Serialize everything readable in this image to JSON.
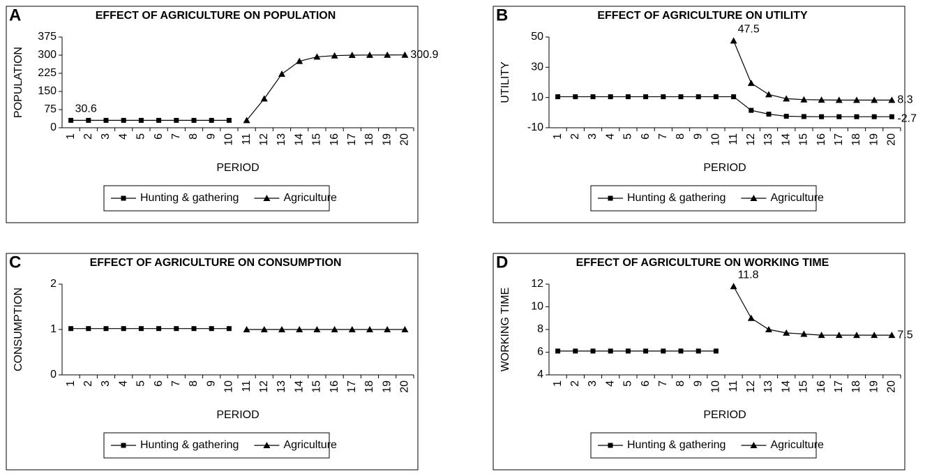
{
  "chart_data": [
    {
      "type": "line",
      "panel": "A",
      "title": "EFFECT OF AGRICULTURE ON POPULATION",
      "x_label": "PERIOD",
      "y_label": "POPULATION",
      "categories": [
        "1",
        "2",
        "3",
        "4",
        "5",
        "6",
        "7",
        "8",
        "9",
        "10",
        "11",
        "12",
        "13",
        "14",
        "15",
        "16",
        "17",
        "18",
        "19",
        "20"
      ],
      "ylim": [
        0,
        375
      ],
      "yticks": [
        0,
        75,
        150,
        225,
        300,
        375
      ],
      "legend": "bottom",
      "series": [
        {
          "name": "Hunting & gathering",
          "color": "#000000",
          "marker": "square",
          "labeled": [
            0
          ],
          "values": [
            30.6,
            30.6,
            30.6,
            30.6,
            30.6,
            30.6,
            30.6,
            30.6,
            30.6,
            30.6,
            null,
            null,
            null,
            null,
            null,
            null,
            null,
            null,
            null,
            null
          ]
        },
        {
          "name": "Agriculture",
          "color": "#000000",
          "marker": "triangle",
          "labeled": [
            19
          ],
          "values": [
            null,
            null,
            null,
            null,
            null,
            null,
            null,
            null,
            null,
            null,
            30.6,
            120,
            222,
            275,
            293,
            298,
            300,
            300.5,
            300.8,
            300.9
          ]
        }
      ]
    },
    {
      "type": "line",
      "panel": "B",
      "title": "EFFECT OF AGRICULTURE ON UTILITY",
      "x_label": "PERIOD",
      "y_label": "UTILITY",
      "categories": [
        "1",
        "2",
        "3",
        "4",
        "5",
        "6",
        "7",
        "8",
        "9",
        "10",
        "11",
        "12",
        "13",
        "14",
        "15",
        "16",
        "17",
        "18",
        "19",
        "20"
      ],
      "ylim": [
        -10,
        50
      ],
      "yticks": [
        -10,
        10,
        30,
        50
      ],
      "legend": "bottom",
      "series": [
        {
          "name": "Hunting & gathering",
          "color": "#000000",
          "marker": "square",
          "labeled": [
            19
          ],
          "values": [
            10.5,
            10.5,
            10.5,
            10.5,
            10.5,
            10.5,
            10.5,
            10.5,
            10.5,
            10.5,
            10.5,
            1.5,
            -1,
            -2.4,
            -2.6,
            -2.7,
            -2.7,
            -2.7,
            -2.7,
            -2.7
          ]
        },
        {
          "name": "Agriculture",
          "color": "#000000",
          "marker": "triangle",
          "labeled": [
            10,
            19
          ],
          "values": [
            null,
            null,
            null,
            null,
            null,
            null,
            null,
            null,
            null,
            null,
            47.5,
            19.5,
            12,
            9.2,
            8.6,
            8.4,
            8.3,
            8.3,
            8.3,
            8.3
          ]
        }
      ]
    },
    {
      "type": "line",
      "panel": "C",
      "title": "EFFECT OF AGRICULTURE ON CONSUMPTION",
      "x_label": "PERIOD",
      "y_label": "CONSUMPTION",
      "categories": [
        "1",
        "2",
        "3",
        "4",
        "5",
        "6",
        "7",
        "8",
        "9",
        "10",
        "11",
        "12",
        "13",
        "14",
        "15",
        "16",
        "17",
        "18",
        "19",
        "20"
      ],
      "ylim": [
        0,
        2
      ],
      "yticks": [
        0,
        1,
        2
      ],
      "legend": "bottom",
      "series": [
        {
          "name": "Hunting & gathering",
          "color": "#000000",
          "marker": "square",
          "labeled": [],
          "values": [
            1.02,
            1.02,
            1.02,
            1.02,
            1.02,
            1.02,
            1.02,
            1.02,
            1.02,
            1.02,
            null,
            null,
            null,
            null,
            null,
            null,
            null,
            null,
            null,
            null
          ]
        },
        {
          "name": "Agriculture",
          "color": "#000000",
          "marker": "triangle",
          "labeled": [],
          "values": [
            null,
            null,
            null,
            null,
            null,
            null,
            null,
            null,
            null,
            null,
            1,
            1,
            1,
            1,
            1,
            1,
            1,
            1,
            1,
            1
          ]
        }
      ]
    },
    {
      "type": "line",
      "panel": "D",
      "title": "EFFECT OF AGRICULTURE ON WORKING TIME",
      "x_label": "PERIOD",
      "y_label": "WORKING TIME",
      "categories": [
        "1",
        "2",
        "3",
        "4",
        "5",
        "6",
        "7",
        "8",
        "9",
        "10",
        "11",
        "12",
        "13",
        "14",
        "15",
        "16",
        "17",
        "18",
        "19",
        "20"
      ],
      "ylim": [
        4,
        12
      ],
      "yticks": [
        4,
        6,
        8,
        10,
        12
      ],
      "legend": "bottom",
      "series": [
        {
          "name": "Hunting & gathering",
          "color": "#000000",
          "marker": "square",
          "labeled": [],
          "values": [
            6.1,
            6.1,
            6.1,
            6.1,
            6.1,
            6.1,
            6.1,
            6.1,
            6.1,
            6.1,
            null,
            null,
            null,
            null,
            null,
            null,
            null,
            null,
            null,
            null
          ]
        },
        {
          "name": "Agriculture",
          "color": "#000000",
          "marker": "triangle",
          "labeled": [
            10,
            19
          ],
          "values": [
            null,
            null,
            null,
            null,
            null,
            null,
            null,
            null,
            null,
            null,
            11.8,
            9,
            8,
            7.7,
            7.6,
            7.5,
            7.5,
            7.5,
            7.5,
            7.5
          ]
        }
      ]
    }
  ]
}
